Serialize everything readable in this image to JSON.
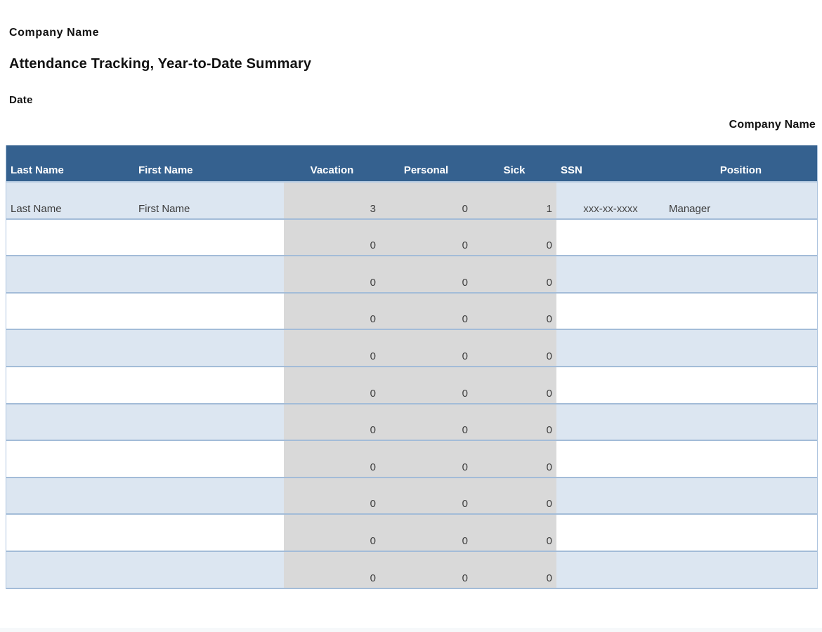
{
  "header": {
    "company_name": "Company Name",
    "title": "Attendance Tracking, Year-to-Date Summary",
    "date_label": "Date"
  },
  "table": {
    "company_name_label": "Company Name",
    "columns": [
      {
        "key": "last_name",
        "label": "Last Name",
        "header_align": "left",
        "align": "left",
        "shaded": false
      },
      {
        "key": "first_name",
        "label": "First Name",
        "header_align": "left",
        "align": "left",
        "shaded": false
      },
      {
        "key": "vacation",
        "label": "Vacation",
        "header_align": "center",
        "align": "right",
        "shaded": true
      },
      {
        "key": "personal",
        "label": "Personal",
        "header_align": "center",
        "align": "right",
        "shaded": true
      },
      {
        "key": "sick",
        "label": "Sick",
        "header_align": "center",
        "align": "right",
        "shaded": true
      },
      {
        "key": "ssn",
        "label": "SSN",
        "header_align": "left",
        "align": "center",
        "shaded": false
      },
      {
        "key": "position",
        "label": "Position",
        "header_align": "center",
        "align": "left",
        "shaded": false
      }
    ],
    "rows": [
      {
        "last_name": "Last Name",
        "first_name": "First Name",
        "vacation": "3",
        "personal": "0",
        "sick": "1",
        "ssn": "xxx-xx-xxxx",
        "position": "Manager"
      },
      {
        "last_name": "",
        "first_name": "",
        "vacation": "0",
        "personal": "0",
        "sick": "0",
        "ssn": "",
        "position": ""
      },
      {
        "last_name": "",
        "first_name": "",
        "vacation": "0",
        "personal": "0",
        "sick": "0",
        "ssn": "",
        "position": ""
      },
      {
        "last_name": "",
        "first_name": "",
        "vacation": "0",
        "personal": "0",
        "sick": "0",
        "ssn": "",
        "position": ""
      },
      {
        "last_name": "",
        "first_name": "",
        "vacation": "0",
        "personal": "0",
        "sick": "0",
        "ssn": "",
        "position": ""
      },
      {
        "last_name": "",
        "first_name": "",
        "vacation": "0",
        "personal": "0",
        "sick": "0",
        "ssn": "",
        "position": ""
      },
      {
        "last_name": "",
        "first_name": "",
        "vacation": "0",
        "personal": "0",
        "sick": "0",
        "ssn": "",
        "position": ""
      },
      {
        "last_name": "",
        "first_name": "",
        "vacation": "0",
        "personal": "0",
        "sick": "0",
        "ssn": "",
        "position": ""
      },
      {
        "last_name": "",
        "first_name": "",
        "vacation": "0",
        "personal": "0",
        "sick": "0",
        "ssn": "",
        "position": ""
      },
      {
        "last_name": "",
        "first_name": "",
        "vacation": "0",
        "personal": "0",
        "sick": "0",
        "ssn": "",
        "position": ""
      },
      {
        "last_name": "",
        "first_name": "",
        "vacation": "0",
        "personal": "0",
        "sick": "0",
        "ssn": "",
        "position": ""
      }
    ]
  },
  "colors": {
    "header_bg": "#35618F",
    "stripe": "#DCE6F1",
    "shaded_column": "#D9D9D9",
    "separator": "#A3BCD8",
    "edge": "#AEC5DF"
  }
}
